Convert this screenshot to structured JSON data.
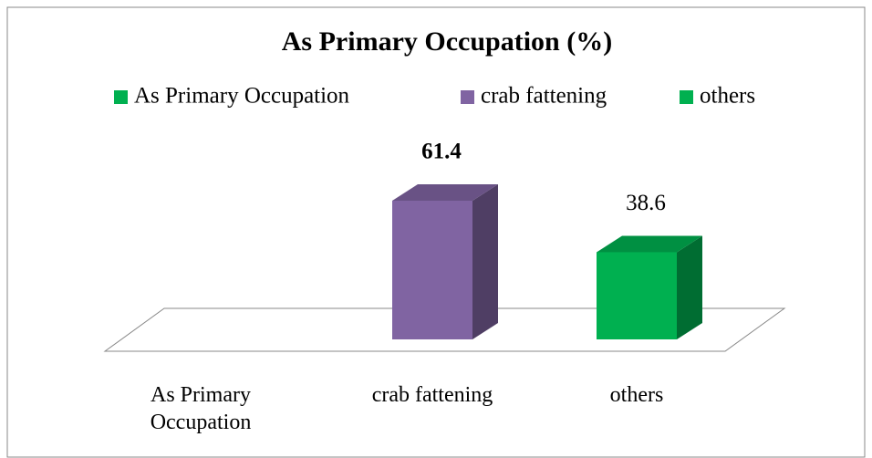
{
  "chart_data": {
    "type": "bar3d",
    "title": "As Primary Occupation (%)",
    "legend": [
      {
        "name": "As Primary Occupation",
        "color": "#00b050"
      },
      {
        "name": "crab fattening",
        "color": "#8064a2"
      },
      {
        "name": "others",
        "color": "#00b050"
      }
    ],
    "categories": [
      "As Primary Occupation",
      "crab fattening",
      "others"
    ],
    "values": [
      null,
      61.4,
      38.6
    ],
    "colors": [
      "#00b050",
      "#8064a2",
      "#00b050"
    ]
  }
}
